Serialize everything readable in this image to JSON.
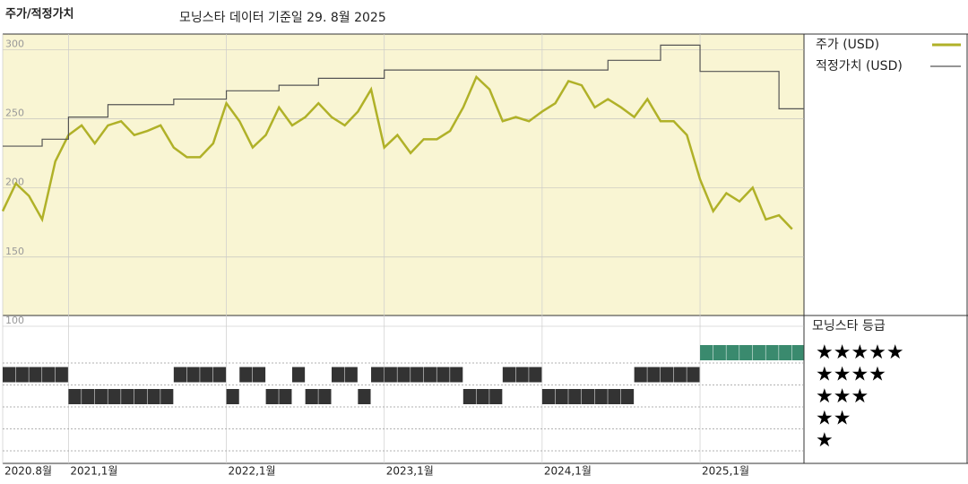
{
  "chart_data": {
    "type": "line",
    "title": "주가/적정가치",
    "subtitle": "모닝스타 데이터 기준일 29. 8월 2025",
    "x": [
      "2020-08",
      "2020-09",
      "2020-10",
      "2020-11",
      "2020-12",
      "2021-01",
      "2021-02",
      "2021-03",
      "2021-04",
      "2021-05",
      "2021-06",
      "2021-07",
      "2021-08",
      "2021-09",
      "2021-10",
      "2021-11",
      "2021-12",
      "2022-01",
      "2022-02",
      "2022-03",
      "2022-04",
      "2022-05",
      "2022-06",
      "2022-07",
      "2022-08",
      "2022-09",
      "2022-10",
      "2022-11",
      "2022-12",
      "2023-01",
      "2023-02",
      "2023-03",
      "2023-04",
      "2023-05",
      "2023-06",
      "2023-07",
      "2023-08",
      "2023-09",
      "2023-10",
      "2023-11",
      "2023-12",
      "2024-01",
      "2024-02",
      "2024-03",
      "2024-04",
      "2024-05",
      "2024-06",
      "2024-07",
      "2024-08",
      "2024-09",
      "2024-10",
      "2024-11",
      "2024-12",
      "2025-01",
      "2025-02",
      "2025-03",
      "2025-04",
      "2025-05",
      "2025-06",
      "2025-07",
      "2025-08"
    ],
    "xticks": [
      {
        "value": "2020-08",
        "label": "2020.8월"
      },
      {
        "value": "2021-01",
        "label": "2021,1월"
      },
      {
        "value": "2022-01",
        "label": "2022,1월"
      },
      {
        "value": "2023-01",
        "label": "2023,1월"
      },
      {
        "value": "2024-01",
        "label": "2024,1월"
      },
      {
        "value": "2025-01",
        "label": "2025,1월"
      }
    ],
    "ylim": [
      100,
      306
    ],
    "yticks": [
      100,
      150,
      200,
      250,
      300
    ],
    "series": [
      {
        "name": "주가 (USD)",
        "color": "#b0b128",
        "values": [
          178,
          198,
          189,
          172,
          214,
          233,
          240,
          227,
          240,
          243,
          233,
          236,
          240,
          224,
          217,
          217,
          227,
          256,
          243,
          224,
          233,
          253,
          240,
          246,
          256,
          246,
          240,
          250,
          266,
          224,
          233,
          220,
          230,
          230,
          236,
          253,
          275,
          266,
          243,
          246,
          243,
          250,
          256,
          272,
          269,
          253,
          259,
          253,
          246,
          259,
          243,
          243,
          233,
          201,
          178,
          191,
          185,
          195,
          172,
          175,
          165
        ]
      },
      {
        "name": "적정가치 (USD)",
        "color": "#555555",
        "step": true,
        "values": [
          225,
          225,
          225,
          230,
          230,
          246,
          246,
          246,
          255,
          255,
          255,
          255,
          255,
          259,
          259,
          259,
          259,
          265,
          265,
          265,
          265,
          269,
          269,
          269,
          274,
          274,
          274,
          274,
          274,
          280,
          280,
          280,
          280,
          280,
          280,
          280,
          280,
          280,
          280,
          280,
          280,
          280,
          280,
          280,
          280,
          280,
          287,
          287,
          287,
          287,
          298,
          298,
          298,
          279,
          279,
          279,
          279,
          279,
          279,
          252,
          252
        ]
      }
    ],
    "ratings": {
      "title": "모닝스타 등급",
      "levels": [
        {
          "value": 5,
          "label": "★★★★★"
        },
        {
          "value": 4,
          "label": "★★★★"
        },
        {
          "value": 3,
          "label": "★★★"
        },
        {
          "value": 2,
          "label": "★★"
        },
        {
          "value": 1,
          "label": "★"
        }
      ],
      "values": [
        4,
        4,
        4,
        4,
        4,
        3,
        3,
        3,
        3,
        3,
        3,
        3,
        3,
        4,
        4,
        4,
        4,
        3,
        4,
        4,
        3,
        3,
        4,
        3,
        3,
        4,
        4,
        3,
        4,
        4,
        4,
        4,
        4,
        4,
        4,
        3,
        3,
        3,
        4,
        4,
        4,
        3,
        3,
        3,
        3,
        3,
        3,
        3,
        4,
        4,
        4,
        4,
        4,
        5,
        5,
        5,
        5,
        5,
        5,
        5,
        5
      ],
      "color": "#333333",
      "top_color": "#3a8a6e"
    }
  }
}
